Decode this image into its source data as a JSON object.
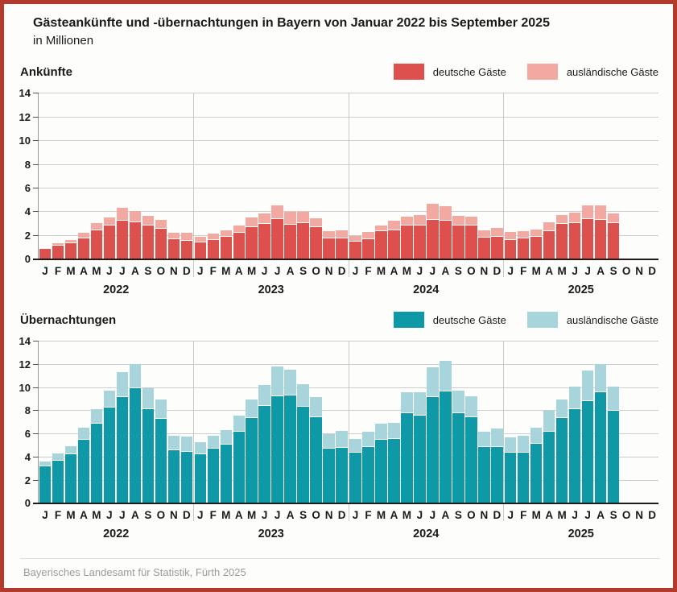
{
  "header": {
    "title": "Gästeankünfte und -übernachtungen in Bayern von Januar 2022 bis September 2025",
    "subtitle": "in Millionen"
  },
  "footer": {
    "source": "Bayerisches Landesamt für Statistik, Fürth 2025"
  },
  "colors": {
    "frame_border": "#b43a2c",
    "arrivals_domestic": "#dc504d",
    "arrivals_foreign": "#f1a9a1",
    "overnight_domestic": "#0f99a6",
    "overnight_foreign": "#a7d5db",
    "gridline": "#cdcdcd",
    "baseline": "#201b18",
    "footer_text": "#9b9b9b"
  },
  "chart_data": [
    {
      "type": "bar",
      "stacked": true,
      "title": "Ankünfte",
      "unit": "Millionen",
      "ylim": [
        0,
        14
      ],
      "ytick_step": 2,
      "grid": true,
      "legend_position": "top-right",
      "years": [
        "2022",
        "2023",
        "2024",
        "2025"
      ],
      "month_labels": [
        "J",
        "F",
        "M",
        "A",
        "M",
        "J",
        "J",
        "A",
        "S",
        "O",
        "N",
        "D"
      ],
      "series": [
        {
          "name": "deutsche Gäste",
          "color": "#dc504d",
          "values_by_year": {
            "2022": [
              0.9,
              1.15,
              1.4,
              1.8,
              2.45,
              2.85,
              3.3,
              3.15,
              2.9,
              2.6,
              1.75,
              1.6
            ],
            "2023": [
              1.45,
              1.65,
              1.9,
              2.25,
              2.75,
              3.0,
              3.4,
              2.95,
              3.1,
              2.75,
              1.8,
              1.8
            ],
            "2024": [
              1.5,
              1.75,
              2.4,
              2.5,
              2.9,
              2.85,
              3.35,
              3.3,
              2.9,
              2.9,
              1.85,
              1.9
            ],
            "2025": [
              1.65,
              1.8,
              1.95,
              2.4,
              3.0,
              3.1,
              3.4,
              3.35,
              3.1,
              null,
              null,
              null
            ]
          }
        },
        {
          "name": "ausländische Gäste",
          "color": "#f1a9a1",
          "values_by_year": {
            "2022": [
              0.1,
              0.25,
              0.25,
              0.45,
              0.6,
              0.7,
              1.05,
              0.95,
              0.8,
              0.75,
              0.5,
              0.65
            ],
            "2023": [
              0.5,
              0.55,
              0.6,
              0.65,
              0.8,
              0.9,
              1.2,
              1.05,
              0.9,
              0.75,
              0.6,
              0.7
            ],
            "2024": [
              0.5,
              0.6,
              0.45,
              0.75,
              0.7,
              0.9,
              1.35,
              1.2,
              0.8,
              0.75,
              0.65,
              0.8
            ],
            "2025": [
              0.65,
              0.6,
              0.6,
              0.75,
              0.75,
              0.85,
              1.2,
              1.2,
              0.8,
              null,
              null,
              null
            ]
          }
        }
      ]
    },
    {
      "type": "bar",
      "stacked": true,
      "title": "Übernachtungen",
      "unit": "Millionen",
      "ylim": [
        0,
        14
      ],
      "ytick_step": 2,
      "grid": true,
      "legend_position": "top-right",
      "years": [
        "2022",
        "2023",
        "2024",
        "2025"
      ],
      "month_labels": [
        "J",
        "F",
        "M",
        "A",
        "M",
        "J",
        "J",
        "A",
        "S",
        "O",
        "N",
        "D"
      ],
      "series": [
        {
          "name": "deutsche Gäste",
          "color": "#0f99a6",
          "values_by_year": {
            "2022": [
              3.2,
              3.7,
              4.25,
              5.55,
              6.9,
              8.3,
              9.2,
              10.0,
              8.15,
              7.35,
              4.65,
              4.5
            ],
            "2023": [
              4.3,
              4.75,
              5.1,
              6.2,
              7.4,
              8.45,
              9.3,
              9.35,
              8.4,
              7.5,
              4.75,
              4.8
            ],
            "2024": [
              4.4,
              4.9,
              5.5,
              5.6,
              7.8,
              7.6,
              9.2,
              9.7,
              7.8,
              7.5,
              4.9,
              4.9
            ],
            "2025": [
              4.4,
              4.4,
              5.2,
              6.2,
              7.4,
              8.2,
              8.9,
              9.6,
              8.0,
              null,
              null,
              null
            ]
          }
        },
        {
          "name": "ausländische Gäste",
          "color": "#a7d5db",
          "values_by_year": {
            "2022": [
              0.45,
              0.65,
              0.75,
              1.0,
              1.3,
              1.45,
              2.2,
              2.1,
              1.8,
              1.65,
              1.2,
              1.3
            ],
            "2023": [
              1.0,
              1.15,
              1.25,
              1.4,
              1.6,
              1.8,
              2.55,
              2.25,
              1.95,
              1.7,
              1.25,
              1.5
            ],
            "2024": [
              1.2,
              1.3,
              1.4,
              1.4,
              1.8,
              2.0,
              2.6,
              2.65,
              2.0,
              1.8,
              1.3,
              1.6
            ],
            "2025": [
              1.3,
              1.5,
              1.4,
              1.8,
              1.6,
              1.9,
              2.6,
              2.5,
              2.1,
              null,
              null,
              null
            ]
          }
        }
      ]
    }
  ]
}
